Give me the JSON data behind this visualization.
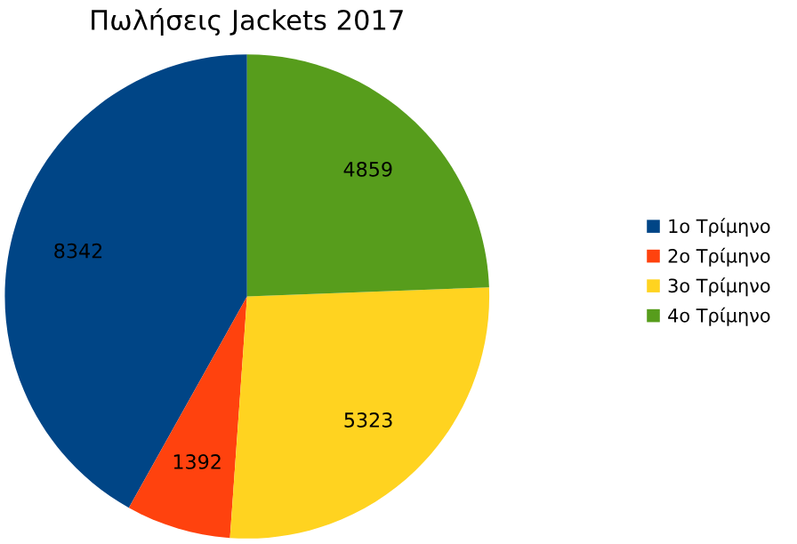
{
  "chart_data": {
    "type": "pie",
    "title": "Πωλήσεις Jackets 2017",
    "categories": [
      "1ο Τρίμηνο",
      "2ο Τρίμηνο",
      "3ο Τρίμηνο",
      "4ο Τρίμηνο"
    ],
    "values": [
      8342,
      1392,
      5323,
      4859
    ],
    "colors": [
      "#004586",
      "#ff420e",
      "#ffd320",
      "#579d1c"
    ],
    "data_labels": true,
    "legend": "right"
  }
}
